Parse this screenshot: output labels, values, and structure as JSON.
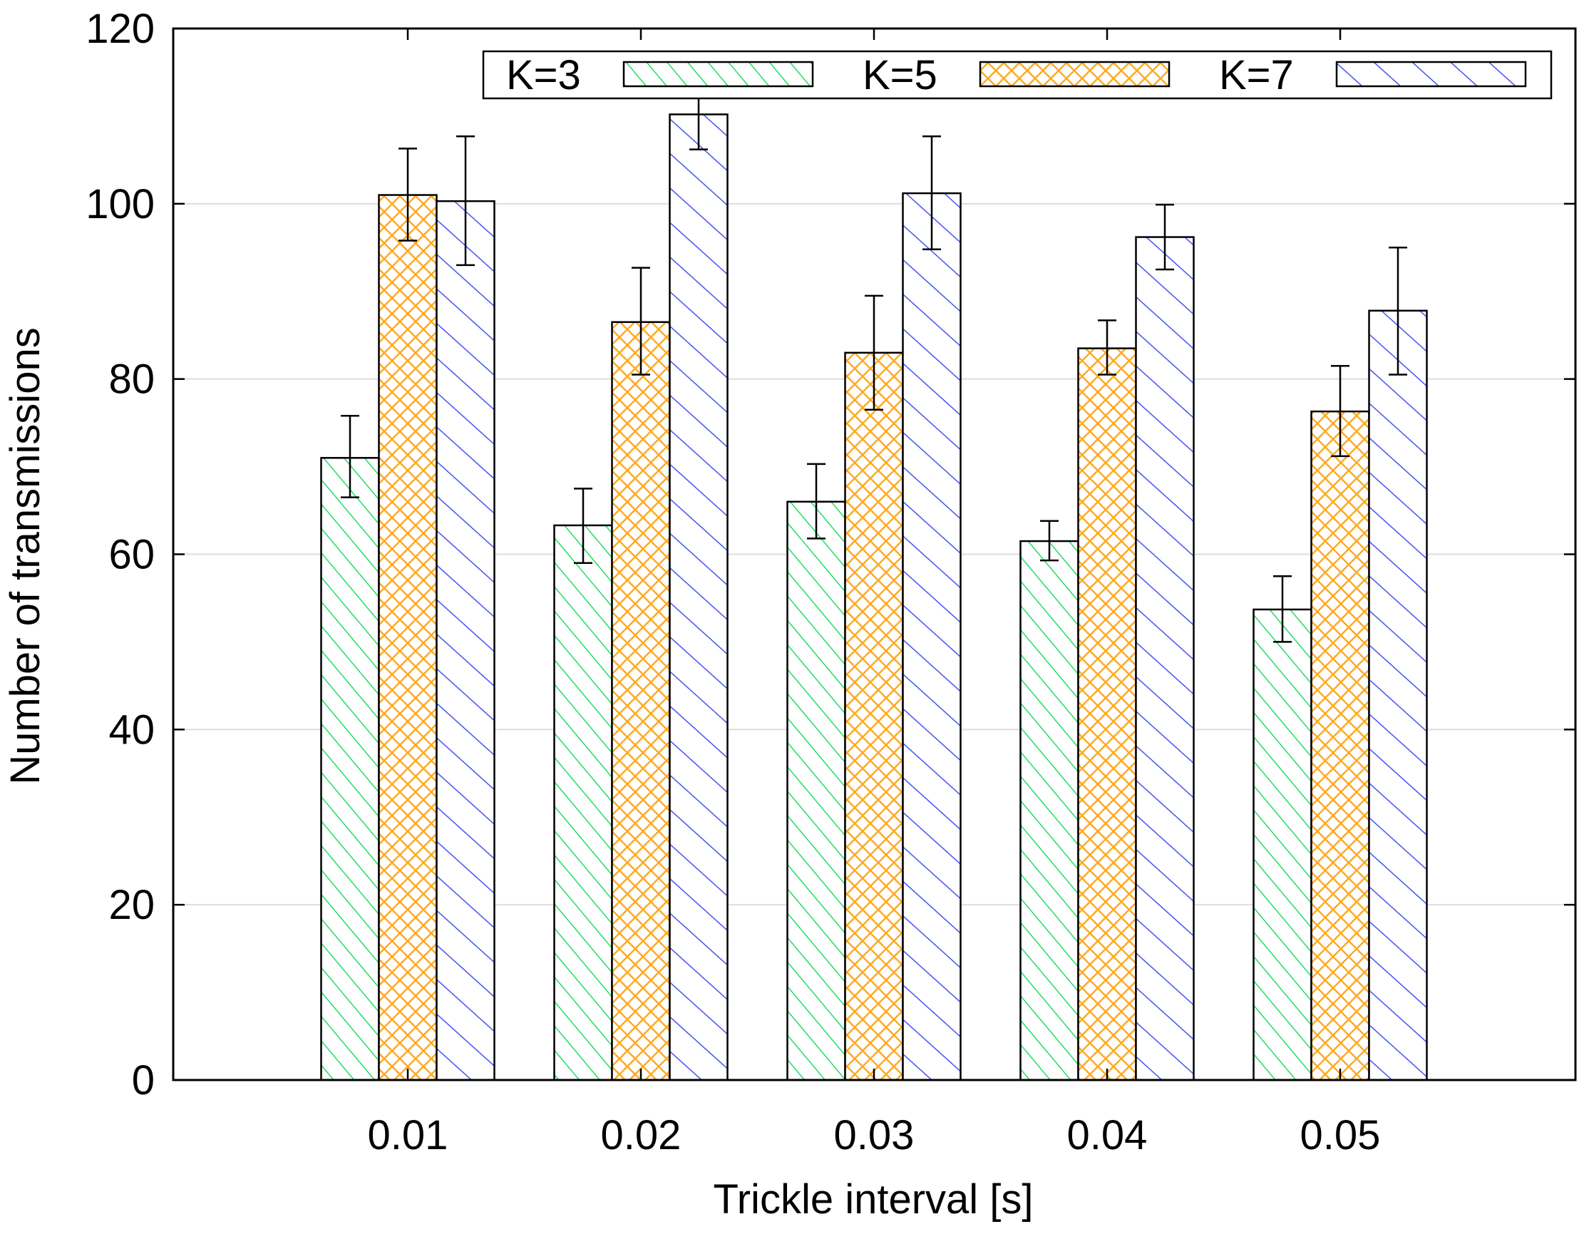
{
  "chart_data": {
    "type": "bar",
    "title": "",
    "xlabel": "Trickle interval [s]",
    "ylabel": "Number of transmissions",
    "categories": [
      "0.01",
      "0.02",
      "0.03",
      "0.04",
      "0.05"
    ],
    "ylim": [
      0,
      120
    ],
    "yticks": [
      0,
      20,
      40,
      60,
      80,
      100,
      120
    ],
    "grid": "horizontal",
    "legend_position": "top",
    "series": [
      {
        "name": "K=3",
        "color": "#22dd66",
        "pattern": "diagonal-back",
        "values": [
          71,
          63.3,
          66,
          61.5,
          53.7
        ],
        "err_low": [
          66.5,
          59,
          61.8,
          59.3,
          50
        ],
        "err_high": [
          75.8,
          67.5,
          70.3,
          63.8,
          57.5
        ]
      },
      {
        "name": "K=5",
        "color": "#ffaa22",
        "pattern": "crosshatch",
        "values": [
          101,
          86.5,
          83,
          83.5,
          76.3
        ],
        "err_low": [
          95.8,
          80.5,
          76.5,
          80.5,
          71.2
        ],
        "err_high": [
          106.3,
          92.7,
          89.5,
          86.7,
          81.5
        ]
      },
      {
        "name": "K=7",
        "color": "#4455ee",
        "pattern": "diagonal-back-wide",
        "values": [
          100.3,
          110.2,
          101.2,
          96.2,
          87.8
        ],
        "err_low": [
          93,
          106.2,
          94.8,
          92.5,
          80.5
        ],
        "err_high": [
          107.7,
          113,
          107.7,
          99.9,
          95
        ]
      }
    ]
  }
}
